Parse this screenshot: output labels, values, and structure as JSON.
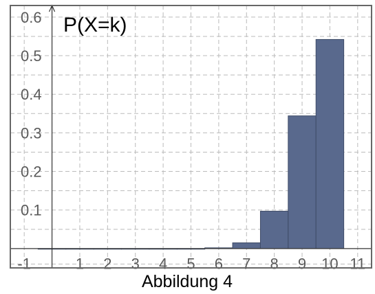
{
  "chart_data": {
    "type": "bar",
    "ylabel": "P(X=k)",
    "xlabel": "",
    "caption": "Abbildung 4",
    "x": [
      0,
      1,
      2,
      3,
      4,
      5,
      6,
      7,
      8,
      9,
      10
    ],
    "values": [
      0.0,
      0.0,
      0.0,
      0.0,
      0.0,
      0.0,
      0.002,
      0.015,
      0.097,
      0.344,
      0.542
    ],
    "x_ticks": [
      {
        "value": -1,
        "label": "-1"
      },
      {
        "value": 1,
        "label": "1"
      },
      {
        "value": 2,
        "label": "2"
      },
      {
        "value": 3,
        "label": "3"
      },
      {
        "value": 4,
        "label": "4"
      },
      {
        "value": 5,
        "label": "5"
      },
      {
        "value": 6,
        "label": "6"
      },
      {
        "value": 7,
        "label": "7"
      },
      {
        "value": 8,
        "label": "8"
      },
      {
        "value": 9,
        "label": "9"
      },
      {
        "value": 10,
        "label": "10"
      },
      {
        "value": 11,
        "label": "11"
      }
    ],
    "y_ticks": [
      {
        "value": 0.1,
        "label": "0.1"
      },
      {
        "value": 0.2,
        "label": "0.2"
      },
      {
        "value": 0.3,
        "label": "0.3"
      },
      {
        "value": 0.4,
        "label": "0.4"
      },
      {
        "value": 0.5,
        "label": "0.5"
      },
      {
        "value": 0.6,
        "label": "0.6"
      }
    ],
    "xlim": [
      -1.5,
      11.5
    ],
    "ylim": [
      -0.05,
      0.63
    ],
    "grid": true,
    "grid_style": "dashed",
    "bar_width": 1,
    "colors": {
      "bar_fill": "#59698d",
      "bar_stroke": "#3f4c68",
      "axis": "#333333",
      "grid": "#bbbbbb",
      "frame": "#666666"
    }
  }
}
